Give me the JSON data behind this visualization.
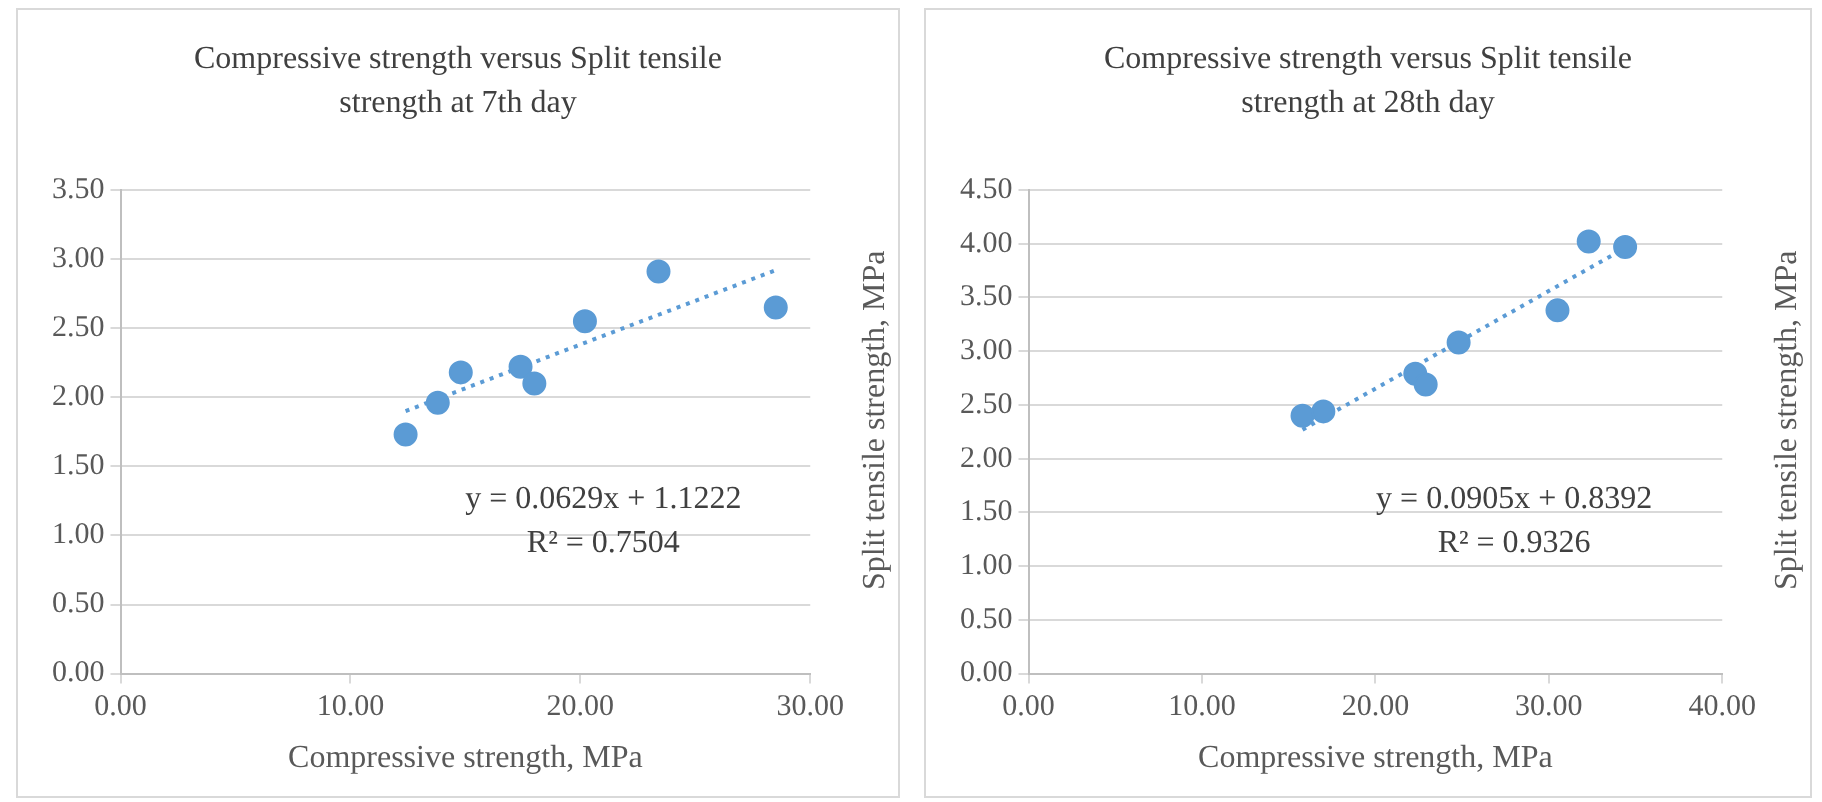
{
  "chart_data": [
    {
      "type": "scatter",
      "title": "Compressive strength versus Split tensile strength at 7th day",
      "xlabel": "Compressive strength, MPa",
      "ylabel": "Split tensile strength, MPa",
      "xlim": [
        0,
        30
      ],
      "xticks": [
        {
          "value": 0,
          "label": "0.00"
        },
        {
          "value": 10,
          "label": "10.00"
        },
        {
          "value": 20,
          "label": "20.00"
        },
        {
          "value": 30,
          "label": "30.00"
        }
      ],
      "ylim": [
        0,
        3.5
      ],
      "yticks": [
        {
          "value": 0,
          "label": "0.00"
        },
        {
          "value": 0.5,
          "label": "0.50"
        },
        {
          "value": 1,
          "label": "1.00"
        },
        {
          "value": 1.5,
          "label": "1.50"
        },
        {
          "value": 2,
          "label": "2.00"
        },
        {
          "value": 2.5,
          "label": "2.50"
        },
        {
          "value": 3,
          "label": "3.00"
        },
        {
          "value": 3.5,
          "label": "3.50"
        }
      ],
      "grid": "y",
      "marker": "circle",
      "annotations": [
        "y = 0.0629x + 1.1222",
        "R² = 0.7504"
      ],
      "series": [
        {
          "type": "scatter",
          "color": "#5b9bd5",
          "x": [
            12.4,
            13.8,
            14.8,
            17.4,
            18.0,
            20.2,
            23.4,
            28.5
          ],
          "values": [
            1.73,
            1.96,
            2.18,
            2.22,
            2.1,
            2.55,
            2.91,
            2.65
          ]
        },
        {
          "type": "line",
          "color": "#5b9bd5",
          "line_style": "dotted",
          "marker": "none",
          "x": [
            12.4,
            28.5
          ],
          "values": [
            1.9,
            2.92
          ]
        }
      ]
    },
    {
      "type": "scatter",
      "title": "Compressive strength versus Split tensile strength at 28th day",
      "xlabel": "Compressive strength, MPa",
      "ylabel": "Split tensile strength, MPa",
      "xlim": [
        0,
        40
      ],
      "xticks": [
        {
          "value": 0,
          "label": "0.00"
        },
        {
          "value": 10,
          "label": "10.00"
        },
        {
          "value": 20,
          "label": "20.00"
        },
        {
          "value": 30,
          "label": "30.00"
        },
        {
          "value": 40,
          "label": "40.00"
        }
      ],
      "ylim": [
        0,
        4.5
      ],
      "yticks": [
        {
          "value": 0,
          "label": "0.00"
        },
        {
          "value": 0.5,
          "label": "0.50"
        },
        {
          "value": 1,
          "label": "1.00"
        },
        {
          "value": 1.5,
          "label": "1.50"
        },
        {
          "value": 2,
          "label": "2.00"
        },
        {
          "value": 2.5,
          "label": "2.50"
        },
        {
          "value": 3,
          "label": "3.00"
        },
        {
          "value": 3.5,
          "label": "3.50"
        },
        {
          "value": 4,
          "label": "4.00"
        },
        {
          "value": 4.5,
          "label": "4.50"
        }
      ],
      "grid": "y",
      "marker": "circle",
      "annotations": [
        "y = 0.0905x + 0.8392",
        "R² = 0.9326"
      ],
      "series": [
        {
          "type": "scatter",
          "color": "#5b9bd5",
          "x": [
            15.8,
            17.0,
            22.3,
            22.9,
            24.8,
            30.5,
            32.3,
            34.4
          ],
          "values": [
            2.4,
            2.44,
            2.79,
            2.69,
            3.08,
            3.38,
            4.02,
            3.97
          ]
        },
        {
          "type": "line",
          "color": "#5b9bd5",
          "line_style": "dotted",
          "marker": "none",
          "x": [
            15.8,
            34.4
          ],
          "values": [
            2.27,
            3.96
          ]
        }
      ]
    }
  ]
}
